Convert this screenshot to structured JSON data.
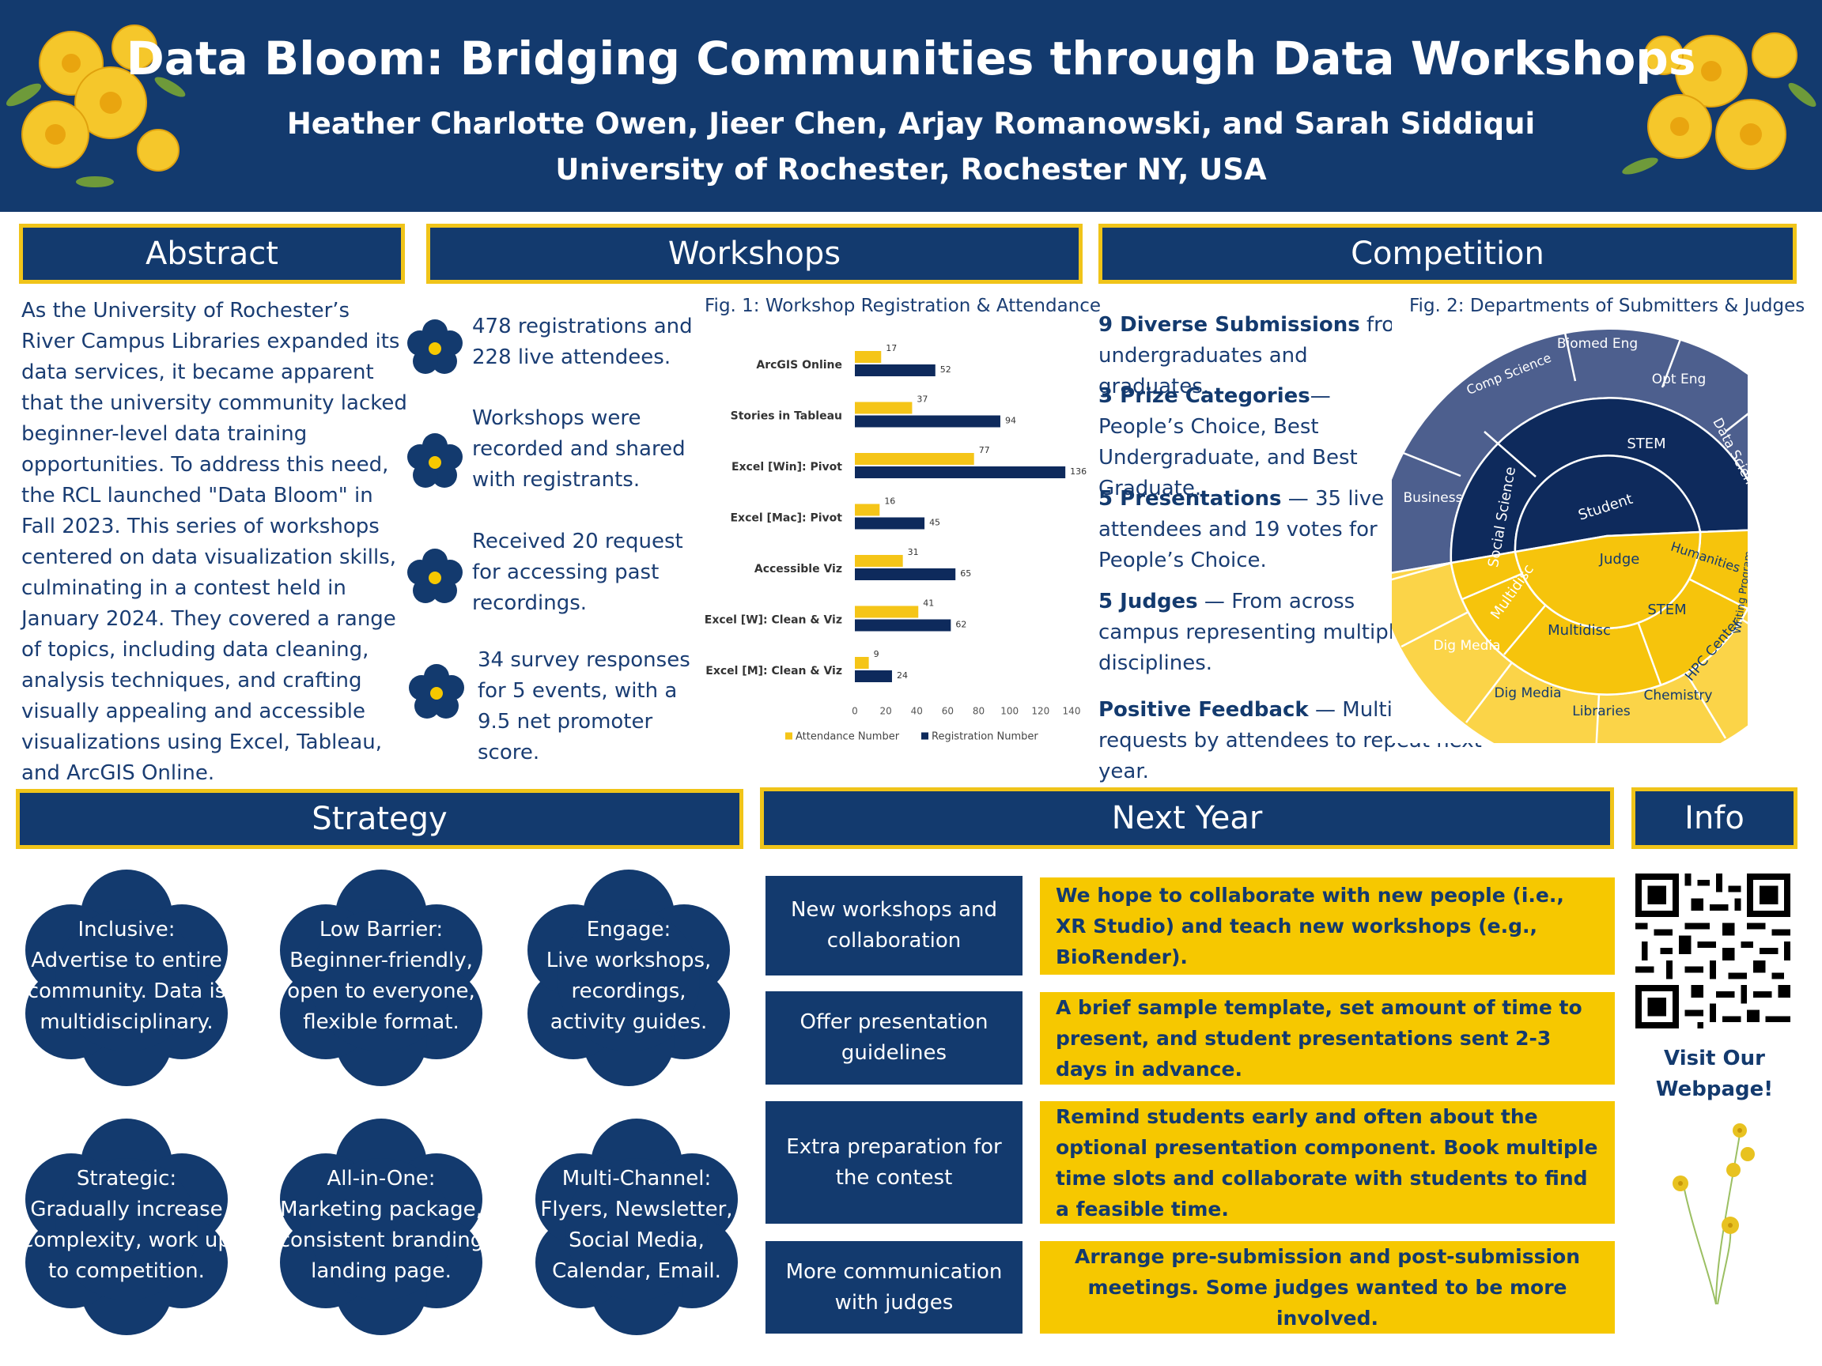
{
  "header": {
    "title": "Data Bloom: Bridging Communities through Data Workshops",
    "authors": "Heather Charlotte Owen, Jieer Chen, Arjay Romanowski, and Sarah Siddiqui",
    "affiliation": "University of Rochester, Rochester NY, USA"
  },
  "abstract": {
    "heading": "Abstract",
    "text": "As the University of Rochester’s River Campus Libraries expanded its data services, it became apparent that the university community lacked beginner-level data training opportunities. To address this need, the RCL launched \"Data Bloom\" in Fall 2023. This series of workshops centered on data visualization skills, culminating in a contest held in January 2024. They covered a range of topics, including data cleaning, analysis techniques, and crafting visually appealing and accessible visualizations using Excel, Tableau, and ArcGIS Online."
  },
  "workshops": {
    "heading": "Workshops",
    "bullets": [
      "478 registrations and 228 live attendees.",
      "Workshops were recorded and shared with registrants.",
      "Received 20 request for accessing past recordings.",
      "34 survey responses for 5 events, with a 9.5 net promoter score."
    ],
    "fig_caption": "Fig. 1: Workshop Registration & Attendance"
  },
  "chart_data": {
    "type": "bar",
    "orientation": "horizontal",
    "categories": [
      "ArcGIS Online",
      "Stories in Tableau",
      "Excel [Win]: Pivot",
      "Excel [Mac]: Pivot",
      "Accessible Viz",
      "Excel [W]: Clean & Viz",
      "Excel [M]: Clean & Viz"
    ],
    "series": [
      {
        "name": "Attendance Number",
        "color": "#f5c518",
        "values": [
          17,
          37,
          77,
          16,
          31,
          41,
          9
        ]
      },
      {
        "name": "Registration Number",
        "color": "#0e2a5c",
        "values": [
          52,
          94,
          136,
          45,
          65,
          62,
          24
        ]
      }
    ],
    "xlim": [
      0,
      140
    ],
    "xticks": [
      "0",
      "20",
      "40",
      "60",
      "80",
      "100",
      "120",
      "140"
    ],
    "title": "Fig. 1: Workshop Registration & Attendance",
    "legend_position": "bottom"
  },
  "competition": {
    "heading": "Competition",
    "items": [
      {
        "bold": "9 Diverse Submissions",
        "rest": " from undergraduates and graduates."
      },
      {
        "bold": "3 Prize Categories",
        "rest": "— People’s Choice, Best Undergraduate, and Best Graduate."
      },
      {
        "bold": "5 Presentations",
        "rest": " — 35 live attendees and 19 votes for People’s Choice."
      },
      {
        "bold": "5 Judges",
        "rest": " — From across campus representing multiple disciplines."
      },
      {
        "bold": "Positive Feedback",
        "rest": " — Multiple requests by attendees to repeat next year."
      }
    ],
    "fig_caption": "Fig. 2: Departments of Submitters & Judges",
    "sunburst": {
      "center": "",
      "inner": [
        "Student",
        "Judge"
      ],
      "middle": [
        "STEM",
        "Social Science",
        "Multidisc",
        "Multidisc",
        "STEM",
        "Humanities"
      ],
      "outer": [
        "Comp Science",
        "Biomed Eng",
        "Opt Eng",
        "Data Science",
        "Business",
        "Dig Media",
        "Dig Media",
        "Libraries",
        "Chemistry",
        "HPC Center",
        "Writing Program"
      ],
      "student_color": "#0e2a5c",
      "judge_color": "#f6c40c"
    }
  },
  "strategy": {
    "heading": "Strategy",
    "items": [
      {
        "title": "Inclusive:",
        "lines": [
          "Advertise to entire",
          "community. Data is",
          "multidisciplinary."
        ]
      },
      {
        "title": "Low Barrier:",
        "lines": [
          "Beginner-friendly,",
          "open to everyone,",
          "flexible format."
        ]
      },
      {
        "title": "Engage:",
        "lines": [
          "Live workshops,",
          "recordings,",
          "activity guides."
        ]
      },
      {
        "title": "Strategic:",
        "lines": [
          "Gradually increase",
          "complexity, work up",
          "to competition."
        ]
      },
      {
        "title": "All-in-One:",
        "lines": [
          "Marketing package,",
          "consistent branding",
          "landing page."
        ]
      },
      {
        "title": "Multi-Channel:",
        "lines": [
          "Flyers, Newsletter,",
          "Social Media,",
          "Calendar, Email."
        ]
      }
    ]
  },
  "next_year": {
    "heading": "Next Year",
    "rows": [
      {
        "label": "New workshops and collaboration",
        "text": "We hope to collaborate with new people (i.e., XR Studio) and teach new workshops (e.g., BioRender)."
      },
      {
        "label": "Offer presentation guidelines",
        "text": "A brief sample template, set amount of time to present, and student presentations sent 2-3 days in advance."
      },
      {
        "label": "Extra preparation for the contest",
        "text": "Remind students early and often about the optional presentation component. Book multiple time slots and collaborate with students to find a feasible time."
      },
      {
        "label": "More communication with judges",
        "text": "Arrange pre-submission and post-submission meetings.  Some judges wanted to be more involved."
      }
    ]
  },
  "info": {
    "heading": "Info",
    "link_text": "Visit Our Webpage!"
  },
  "colors": {
    "navy": "#133a6e",
    "gold": "#f0c419",
    "yellow_box": "#f6c800"
  }
}
